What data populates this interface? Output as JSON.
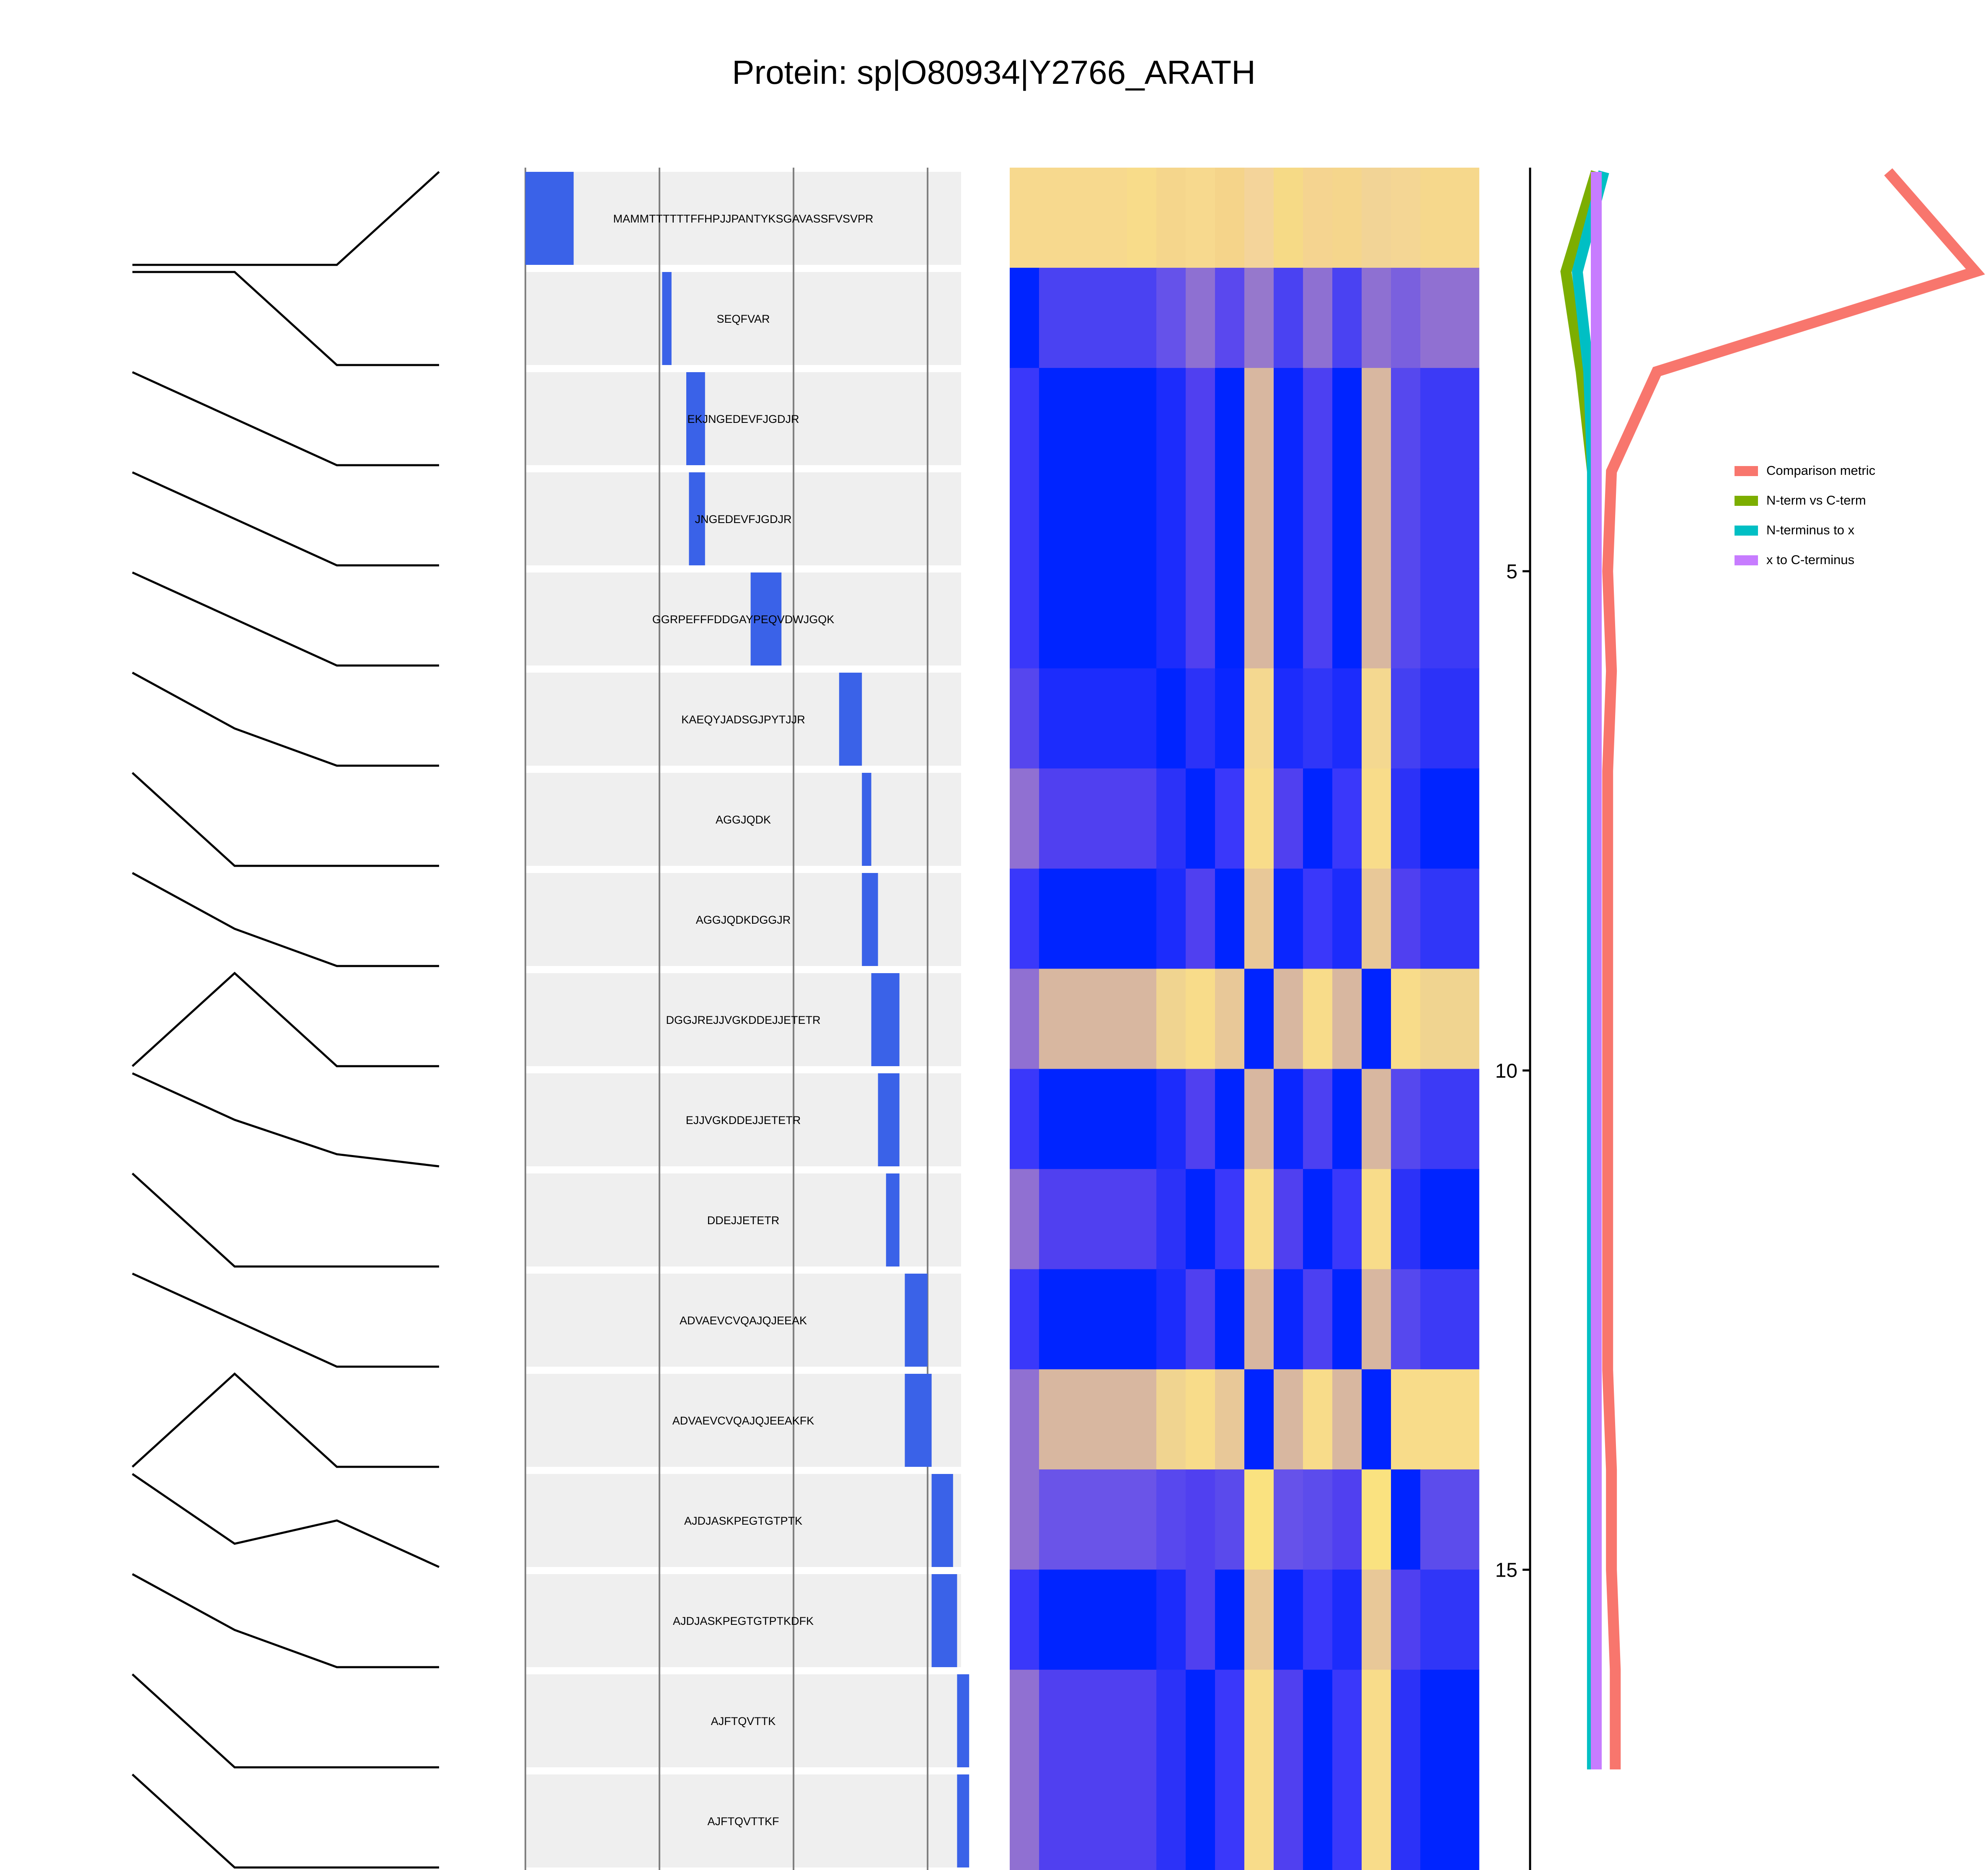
{
  "chart_data": {
    "type": "composite",
    "title": "Protein: sp|O80934|Y2766_ARATH",
    "peptides": [
      {
        "sequence": "MAMMTTTTTTFFHPJJPANTYKSGAVASSFVSVPR",
        "start": 0.0,
        "end": 3.6
      },
      {
        "sequence": "SEQFVAR",
        "start": 10.2,
        "end": 10.9
      },
      {
        "sequence": "EKJNGEDEVFJGDJR",
        "start": 12.0,
        "end": 13.4
      },
      {
        "sequence": "JNGEDEVFJGDJR",
        "start": 12.2,
        "end": 13.4
      },
      {
        "sequence": "GGRPEFFFDDGAYPEQVDWJGQK",
        "start": 16.8,
        "end": 19.1
      },
      {
        "sequence": "KAEQYJADSGJPYTJJR",
        "start": 23.4,
        "end": 25.1
      },
      {
        "sequence": "AGGJQDK",
        "start": 25.1,
        "end": 25.8
      },
      {
        "sequence": "AGGJQDKDGGJR",
        "start": 25.1,
        "end": 26.3
      },
      {
        "sequence": "DGGJREJJVGKDDEJJETETR",
        "start": 25.8,
        "end": 27.9
      },
      {
        "sequence": "EJJVGKDDEJJETETR",
        "start": 26.3,
        "end": 27.9
      },
      {
        "sequence": "DDEJJETETR",
        "start": 26.9,
        "end": 27.9
      },
      {
        "sequence": "ADVAEVCVQAJQJEEAK",
        "start": 28.3,
        "end": 30.0
      },
      {
        "sequence": "ADVAEVCVQAJQJEEAKFK",
        "start": 28.3,
        "end": 30.3
      },
      {
        "sequence": "AJDJASKPEGTGTPTK",
        "start": 30.3,
        "end": 31.9
      },
      {
        "sequence": "AJDJASKPEGTGTPTKDFK",
        "start": 30.3,
        "end": 32.2
      },
      {
        "sequence": "AJFTQVTTK",
        "start": 32.2,
        "end": 33.1
      },
      {
        "sequence": "AJFTQVTTKF",
        "start": 32.2,
        "end": 33.1
      }
    ],
    "coverage_gridlines": [
      0,
      10,
      20,
      30
    ],
    "coverage_xlim": [
      0,
      32.5
    ],
    "profiles": [
      [
        0.0,
        0.0,
        0.0,
        1.0
      ],
      [
        1.0,
        1.0,
        0.0,
        0.0
      ],
      [
        1.0,
        0.5,
        0.0,
        0.0
      ],
      [
        1.0,
        0.5,
        0.0,
        0.0
      ],
      [
        1.0,
        0.5,
        0.0,
        0.0
      ],
      [
        1.0,
        0.4,
        0.0,
        0.0
      ],
      [
        1.0,
        0.0,
        0.0,
        0.0
      ],
      [
        1.0,
        0.4,
        0.0,
        0.0
      ],
      [
        0.0,
        1.0,
        0.0,
        0.0
      ],
      [
        1.0,
        0.5,
        0.13,
        0.0
      ],
      [
        1.0,
        0.0,
        0.0,
        0.0
      ],
      [
        1.0,
        0.5,
        0.0,
        0.0
      ],
      [
        0.0,
        1.0,
        0.0,
        0.0
      ],
      [
        1.0,
        0.25,
        0.5,
        0.0
      ],
      [
        1.0,
        0.4,
        0.0,
        0.0
      ],
      [
        1.0,
        0.0,
        0.0,
        0.0
      ],
      [
        1.0,
        0.0,
        0.0,
        0.0
      ]
    ],
    "heatmap": {
      "column_widths": [
        1,
        3,
        1,
        1,
        1,
        1,
        1,
        1,
        1,
        1,
        1,
        1,
        2
      ],
      "colors": [
        [
          "#F7D98E",
          "#F7D98E",
          "#F8DC8A",
          "#F5D68C",
          "#F7D98E",
          "#F5D48A",
          "#F4D49A",
          "#F6DA86",
          "#F5D490",
          "#F5D68C",
          "#F2D496",
          "#F4D694",
          "#F6D88C"
        ],
        [
          "#0024FF",
          "#4A42F2",
          "#4A42F2",
          "#6552EA",
          "#8E70D2",
          "#5A48EE",
          "#9678CC",
          "#4A42F2",
          "#8E70D2",
          "#4A42F2",
          "#8E70D2",
          "#7A60DE",
          "#9070D2"
        ],
        [
          "#3A38FA",
          "#0024FF",
          "#0024FF",
          "#1C2CFC",
          "#5040F0",
          "#0024FF",
          "#D8B7A0",
          "#0A26FF",
          "#4C40F2",
          "#0024FF",
          "#D8B7A0",
          "#5648EE",
          "#3C3AF6"
        ],
        [
          "#3A38FA",
          "#0024FF",
          "#0024FF",
          "#1C2CFC",
          "#5040F0",
          "#0024FF",
          "#D8B7A0",
          "#0A26FF",
          "#4C40F2",
          "#0024FF",
          "#D8B7A0",
          "#5648EE",
          "#3C3AF6"
        ],
        [
          "#3A38FA",
          "#0024FF",
          "#0024FF",
          "#1C2CFC",
          "#5040F0",
          "#0024FF",
          "#D8B7A0",
          "#0A26FF",
          "#4C40F2",
          "#0024FF",
          "#D8B7A0",
          "#5648EE",
          "#3C3AF6"
        ],
        [
          "#5646EE",
          "#1C2CFC",
          "#1C2CFC",
          "#0024FF",
          "#2C32F8",
          "#0A26FF",
          "#F4D890",
          "#1C2CFC",
          "#3036F8",
          "#1C2CFC",
          "#F4D890",
          "#4440F2",
          "#2C32F8"
        ],
        [
          "#9070D2",
          "#5040F0",
          "#5040F0",
          "#2C32F8",
          "#0024FF",
          "#3A38FA",
          "#F8DC8A",
          "#5040F0",
          "#0024FF",
          "#3A38FA",
          "#F8DC8A",
          "#2C32F8",
          "#0024FF"
        ],
        [
          "#3A38FA",
          "#0024FF",
          "#0024FF",
          "#1C2CFC",
          "#5040F0",
          "#0024FF",
          "#E8C898",
          "#0A26FF",
          "#3A38FA",
          "#1C2CFC",
          "#E8C898",
          "#5040F0",
          "#3036F8"
        ],
        [
          "#9070D2",
          "#D8B7A0",
          "#D8B7A0",
          "#F0D490",
          "#F8DC8A",
          "#E8C898",
          "#0024FF",
          "#D8B7A0",
          "#F8DC8A",
          "#D8B7A0",
          "#0024FF",
          "#F8DC8A",
          "#F0D490"
        ],
        [
          "#3A38FA",
          "#0024FF",
          "#0024FF",
          "#1C2CFC",
          "#5040F0",
          "#0024FF",
          "#D8B7A0",
          "#0A26FF",
          "#4C40F2",
          "#0024FF",
          "#D8B7A0",
          "#5648EE",
          "#3C3AF6"
        ],
        [
          "#9070D2",
          "#5040F0",
          "#5040F0",
          "#2C32F8",
          "#0024FF",
          "#3A38FA",
          "#F8DC8A",
          "#5040F0",
          "#0024FF",
          "#3A38FA",
          "#F8DC8A",
          "#2C32F8",
          "#0024FF"
        ],
        [
          "#3A38FA",
          "#0024FF",
          "#0024FF",
          "#1C2CFC",
          "#5040F0",
          "#0024FF",
          "#D8B7A0",
          "#0A26FF",
          "#4C40F2",
          "#0024FF",
          "#D8B7A0",
          "#5648EE",
          "#3C3AF6"
        ],
        [
          "#9070D2",
          "#D8B7A0",
          "#D8B7A0",
          "#F0D490",
          "#F8DC8A",
          "#E8C898",
          "#0024FF",
          "#D8B7A0",
          "#F8DC8A",
          "#D8B7A0",
          "#0024FF",
          "#F8DC8A",
          "#F8DC8A"
        ],
        [
          "#9070D2",
          "#6A54E8",
          "#6A54E8",
          "#5848EE",
          "#5040F0",
          "#5A4AEC",
          "#FAE280",
          "#6652EA",
          "#5C4CEC",
          "#5040F0",
          "#FAE280",
          "#0024FF",
          "#5C4CEC"
        ],
        [
          "#3A38FA",
          "#0024FF",
          "#0024FF",
          "#1C2CFC",
          "#5040F0",
          "#0024FF",
          "#E8C898",
          "#0A26FF",
          "#3A38FA",
          "#1C2CFC",
          "#E8C898",
          "#5040F0",
          "#3036F8"
        ],
        [
          "#9070D2",
          "#5040F0",
          "#5040F0",
          "#2C32F8",
          "#0024FF",
          "#3A38FA",
          "#F8DC8A",
          "#5040F0",
          "#0024FF",
          "#3A38FA",
          "#F8DC8A",
          "#2C32F8",
          "#0024FF"
        ],
        [
          "#9070D2",
          "#5040F0",
          "#5040F0",
          "#2C32F8",
          "#0024FF",
          "#3A38FA",
          "#F8DC8A",
          "#5040F0",
          "#0024FF",
          "#3A38FA",
          "#F8DC8A",
          "#2C32F8",
          "#0024FF"
        ]
      ]
    },
    "metric_axis": {
      "ticks": [
        5,
        10,
        15
      ],
      "range": [
        1,
        17
      ]
    },
    "metric_xlim": [
      0,
      1
    ],
    "series": [
      {
        "name": "Comparison metric",
        "color": "#F8766D",
        "values": [
          0.77,
          1.0,
          0.16,
          0.04,
          0.03,
          0.04,
          0.03,
          0.03,
          0.03,
          0.03,
          0.03,
          0.03,
          0.03,
          0.04,
          0.04,
          0.05,
          0.05
        ]
      },
      {
        "name": "N-term vs C-term",
        "color": "#7CAE00",
        "values": [
          0.0,
          -0.08,
          -0.04,
          -0.01,
          0.0,
          0.0,
          0.0,
          0.0,
          0.0,
          0.0,
          0.0,
          0.0,
          0.0,
          0.0,
          0.0,
          0.0,
          0.0
        ]
      },
      {
        "name": "N-terminus to x",
        "color": "#00BFC4",
        "values": [
          0.02,
          -0.05,
          -0.02,
          -0.01,
          -0.01,
          -0.01,
          -0.01,
          -0.01,
          -0.01,
          -0.01,
          -0.01,
          -0.01,
          -0.01,
          -0.01,
          -0.01,
          -0.01,
          -0.01
        ]
      },
      {
        "name": "x to C-terminus",
        "color": "#C77CFF",
        "values": [
          0.0,
          0.0,
          0.0,
          0.0,
          0.0,
          0.0,
          0.0,
          0.0,
          0.0,
          0.0,
          0.0,
          0.0,
          0.0,
          0.0,
          0.0,
          0.0,
          0.0
        ]
      }
    ],
    "legend_position": "right"
  }
}
